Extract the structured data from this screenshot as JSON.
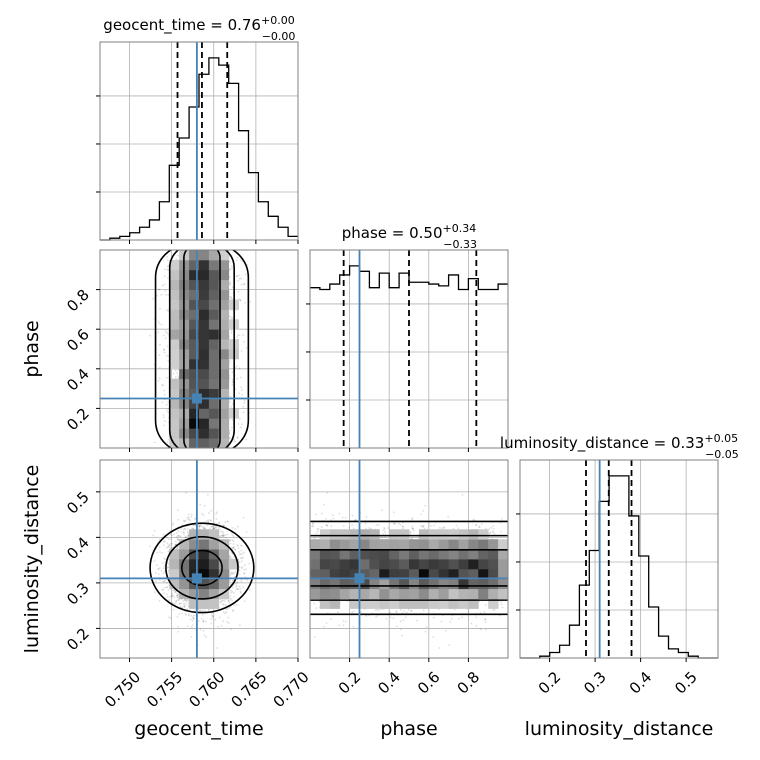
{
  "chart_data": {
    "type": "corner",
    "colors": {
      "truth": "#4682b4",
      "hist": "#000000",
      "grid": "#b0b0b0",
      "frame": "#808080"
    },
    "parameters": [
      {
        "name": "geocent_time",
        "label": "geocent_time",
        "range": [
          0.7465,
          0.77
        ],
        "ticks": [
          0.75,
          0.755,
          0.76,
          0.765,
          0.77
        ],
        "tick_labels": [
          "0.750",
          "0.755",
          "0.760",
          "0.765",
          "0.770"
        ],
        "truth": 0.758,
        "quantiles": [
          0.7557,
          0.7586,
          0.7616
        ],
        "title_main": "geocent_time = 0.76",
        "title_sup": "+0.00",
        "title_sub": "−0.00",
        "hist": {
          "edges_start": 0.7465,
          "bin_width": 0.001175,
          "counts": [
            0.0,
            0.01,
            0.02,
            0.04,
            0.07,
            0.11,
            0.21,
            0.41,
            0.56,
            0.73,
            0.91,
            1.0,
            0.96,
            0.86,
            0.6,
            0.37,
            0.21,
            0.13,
            0.07,
            0.02
          ]
        }
      },
      {
        "name": "phase",
        "label": "phase",
        "range": [
          0.0,
          1.0
        ],
        "ticks": [
          0.2,
          0.4,
          0.6,
          0.8
        ],
        "tick_labels": [
          "0.2",
          "0.4",
          "0.6",
          "0.8"
        ],
        "truth": 0.25,
        "quantiles": [
          0.17,
          0.5,
          0.84
        ],
        "title_main": "phase = 0.50",
        "title_sup": "+0.34",
        "title_sub": "−0.33",
        "hist": {
          "edges_start": 0.0,
          "bin_width": 0.05,
          "counts": [
            0.88,
            0.87,
            0.9,
            0.95,
            1.0,
            0.97,
            0.88,
            0.96,
            0.88,
            0.96,
            0.91,
            0.91,
            0.9,
            0.89,
            0.95,
            0.87,
            0.93,
            0.87,
            0.87,
            0.9
          ]
        }
      },
      {
        "name": "luminosity_distance",
        "label": "luminosity_distance",
        "range": [
          0.135,
          0.57
        ],
        "ticks": [
          0.2,
          0.3,
          0.4,
          0.5
        ],
        "tick_labels": [
          "0.2",
          "0.3",
          "0.4",
          "0.5"
        ],
        "truth": 0.31,
        "quantiles": [
          0.28,
          0.33,
          0.38
        ],
        "title_main": "luminosity_distance = 0.33",
        "title_sup": "+0.05",
        "title_sub": "−0.05",
        "hist": {
          "edges_start": 0.135,
          "bin_width": 0.02175,
          "counts": [
            0.0,
            0.0,
            0.01,
            0.03,
            0.07,
            0.18,
            0.4,
            0.59,
            0.86,
            1.0,
            1.0,
            0.78,
            0.56,
            0.28,
            0.12,
            0.05,
            0.03,
            0.01,
            0.0,
            0.0
          ]
        }
      }
    ],
    "ylabels": [
      "phase",
      "luminosity_distance"
    ],
    "xlabels": [
      "geocent_time",
      "phase",
      "luminosity_distance"
    ]
  }
}
